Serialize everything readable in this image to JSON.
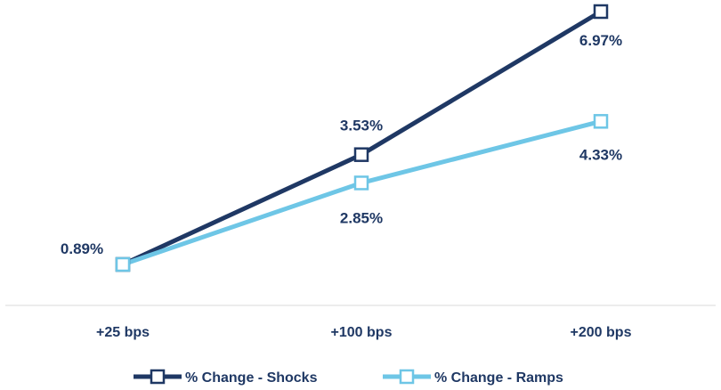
{
  "chart_data": {
    "type": "line",
    "categories": [
      "+25 bps",
      "+100 bps",
      "+200 bps"
    ],
    "series": [
      {
        "name": "% Change - Shocks",
        "values": [
          0.89,
          3.53,
          6.97
        ],
        "labels": [
          "0.89%",
          "3.53%",
          "6.97%"
        ],
        "color": "#1f3864"
      },
      {
        "name": "% Change - Ramps",
        "values": [
          0.89,
          2.85,
          4.33
        ],
        "labels": [
          "",
          "2.85%",
          "4.33%"
        ],
        "color": "#6ec6e6"
      }
    ],
    "ylim": [
      0,
      7
    ],
    "legend": "bottom",
    "grid": false,
    "title": "",
    "xlabel": "",
    "ylabel": ""
  }
}
